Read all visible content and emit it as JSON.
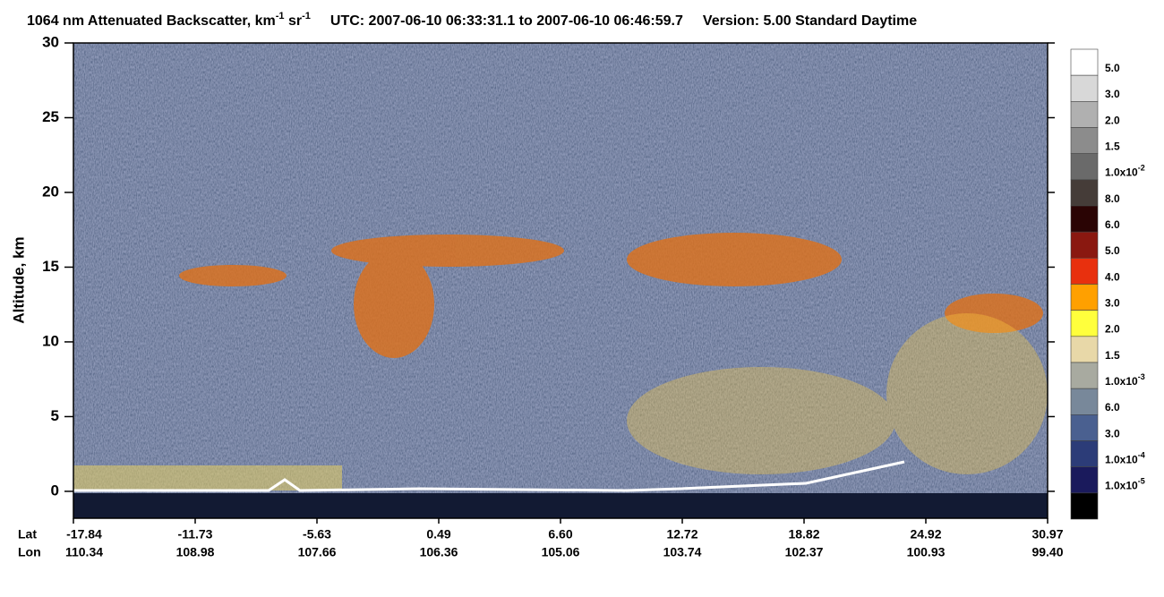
{
  "chart_data": {
    "type": "heatmap",
    "title_parts": [
      "1064 nm Attenuated Backscatter, km",
      "-1",
      " sr",
      "-1",
      "UTC:  2007-06-10 06:33:31.1  to  2007-06-10 06:46:59.7",
      "Version: 5.00  Standard  Daytime"
    ],
    "y_label": "Altitude, km",
    "ylim": [
      -1.8,
      30
    ],
    "yticks": [
      0,
      5,
      10,
      15,
      20,
      25,
      30
    ],
    "lat_label": "Lat",
    "lon_label": "Lon",
    "lat": [
      "-17.84",
      "-11.73",
      "-5.63",
      "0.49",
      "6.60",
      "12.72",
      "18.82",
      "24.92",
      "30.97"
    ],
    "lon": [
      "110.34",
      "108.98",
      "107.66",
      "106.36",
      "105.06",
      "103.74",
      "102.37",
      "100.93",
      "99.40"
    ],
    "colorbar_colors": [
      "#ffffff",
      "#d8d8d8",
      "#b0b0b0",
      "#8c8c8c",
      "#6a6a6a",
      "#453c38",
      "#2a0404",
      "#8a1810",
      "#e8300e",
      "#ffa000",
      "#ffff3c",
      "#e8d8a8",
      "#a8aaa0",
      "#78889a",
      "#4a6090",
      "#2c3c78",
      "#1a1a5c",
      "#000000"
    ],
    "colorbar_labels": [
      {
        "text": "5.0"
      },
      {
        "text": "3.0"
      },
      {
        "text": "2.0"
      },
      {
        "text": "1.5"
      },
      {
        "text": "1.0x10",
        "sup": "-2"
      },
      {
        "text": "8.0"
      },
      {
        "text": "6.0"
      },
      {
        "text": "5.0"
      },
      {
        "text": "4.0"
      },
      {
        "text": "3.0"
      },
      {
        "text": "2.0"
      },
      {
        "text": "1.5"
      },
      {
        "text": "1.0x10",
        "sup": "-3"
      },
      {
        "text": "6.0"
      },
      {
        "text": "3.0"
      },
      {
        "text": "1.0x10",
        "sup": "-4"
      },
      {
        "text": "1.0x10",
        "sup": "-5"
      }
    ]
  }
}
